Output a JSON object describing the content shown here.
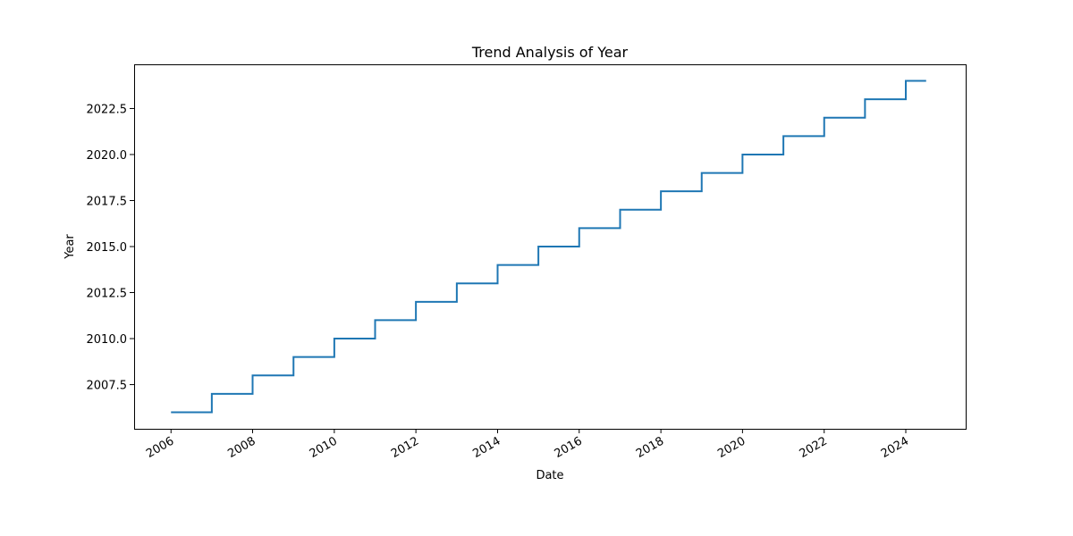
{
  "chart_data": {
    "type": "line",
    "title": "Trend Analysis of Year",
    "xlabel": "Date",
    "ylabel": "Year",
    "x_axis_type": "date",
    "xlim": [
      "2005-02-05",
      "2025-06-20"
    ],
    "ylim": [
      2005.1,
      2024.9
    ],
    "x_ticks": [
      "2006",
      "2008",
      "2010",
      "2012",
      "2014",
      "2016",
      "2018",
      "2020",
      "2022",
      "2024"
    ],
    "y_ticks": [
      "2007.5",
      "2010.0",
      "2012.5",
      "2015.0",
      "2017.5",
      "2020.0",
      "2022.5"
    ],
    "grid": false,
    "line_color": "#1f77b4",
    "step": "post",
    "series": [
      {
        "x": [
          "2006-01-01",
          "2007-01-01",
          "2008-01-01",
          "2009-01-01",
          "2010-01-01",
          "2011-01-01",
          "2012-01-01",
          "2013-01-01",
          "2014-01-01",
          "2015-01-01",
          "2016-01-01",
          "2017-01-01",
          "2018-01-01",
          "2019-01-01",
          "2020-01-01",
          "2021-01-01",
          "2022-01-01",
          "2023-01-01",
          "2024-01-01",
          "2024-07-01"
        ],
        "values": [
          2006,
          2007,
          2008,
          2009,
          2010,
          2011,
          2012,
          2013,
          2014,
          2015,
          2016,
          2017,
          2018,
          2019,
          2020,
          2021,
          2022,
          2023,
          2024,
          2024
        ]
      }
    ]
  }
}
